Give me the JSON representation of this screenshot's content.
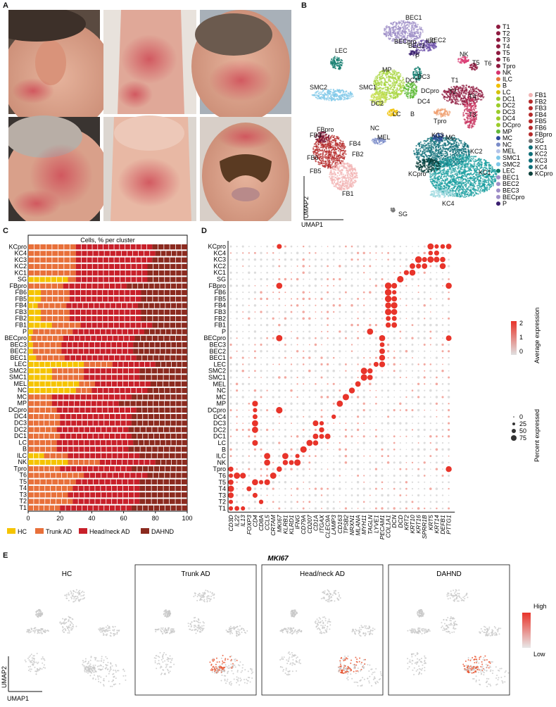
{
  "panels": {
    "a": "A",
    "b": "B",
    "c": "C",
    "d": "D",
    "e": "E"
  },
  "umap": {
    "xlabel": "UMAP1",
    "ylabel": "UMAP2",
    "cluster_labels": [
      "BEC1",
      "BEC2",
      "BEC3",
      "BECpro",
      "P",
      "LEC",
      "SMC1",
      "SMC2",
      "MP",
      "DC3",
      "DC1",
      "DCpro",
      "DC2",
      "DC4",
      "LC",
      "B",
      "ILC",
      "NK",
      "T5",
      "T6",
      "T1",
      "T2",
      "T4",
      "T3",
      "Tpro",
      "NC",
      "MEL",
      "FB3",
      "FBpro",
      "FB4",
      "FB6",
      "FB2",
      "FB5",
      "FB1",
      "KC3",
      "MC",
      "KC2",
      "KCpro",
      "KC1",
      "KC4",
      "SG"
    ],
    "legend_col1": [
      "T1",
      "T2",
      "T3",
      "T4",
      "T5",
      "T6",
      "Tpro",
      "NK",
      "ILC",
      "B",
      "LC",
      "DC1",
      "DC2",
      "DC3",
      "DC4",
      "DCpro",
      "MP",
      "MC",
      "NC",
      "MEL",
      "SMC1",
      "SMC2",
      "LEC",
      "BEC1",
      "BEC2",
      "BEC3",
      "BECpro",
      "P"
    ],
    "legend_col2": [
      "FB1",
      "FB2",
      "FB3",
      "FB4",
      "FB5",
      "FB6",
      "FBpro",
      "SG",
      "KC1",
      "KC2",
      "KC3",
      "KC4",
      "KCpro"
    ],
    "colors": {
      "T": "#8e1a3f",
      "NK": "#d8336e",
      "ILC": "#e87a3a",
      "B": "#f0c000",
      "LC": "#d4c20a",
      "DC": "#9bcc2a",
      "MP": "#63b839",
      "MC": "#2d4a9c",
      "NC": "#7a8cc9",
      "MEL": "#b3c3e8",
      "SMC": "#7ec7e8",
      "LEC": "#0e7a6c",
      "BEC": "#9e8ec7",
      "P": "#3a1f70",
      "FB": "#b52a2a",
      "FB1": "#f2b3b3",
      "SG": "#777777",
      "KC": "#0d6e78",
      "KCpro": "#0a3f3a"
    }
  },
  "stacked_bar": {
    "title": "Cells, % per cluster",
    "categories": [
      "KCpro",
      "KC4",
      "KC3",
      "KC2",
      "KC1",
      "SG",
      "FBpro",
      "FB6",
      "FB5",
      "FB4",
      "FB3",
      "FB2",
      "FB1",
      "P",
      "BECpro",
      "BEC3",
      "BEC2",
      "BEC1",
      "LEC",
      "SMC2",
      "SMC1",
      "MEL",
      "NC",
      "MC",
      "MP",
      "DCpro",
      "DC4",
      "DC3",
      "DC2",
      "DC1",
      "LC",
      "B",
      "ILC",
      "NK",
      "Tpro",
      "T6",
      "T5",
      "T4",
      "T3",
      "T2",
      "T1"
    ],
    "series_names": [
      "HC",
      "Trunk AD",
      "Head/neck AD",
      "DAHND"
    ],
    "series_colors": [
      "#f5c400",
      "#e8703a",
      "#c8202a",
      "#8b2a1f"
    ],
    "hc": [
      0,
      0,
      0,
      0,
      0,
      25,
      0,
      8,
      8,
      6,
      8,
      8,
      15,
      3,
      2,
      3,
      3,
      5,
      35,
      15,
      15,
      32,
      30,
      0,
      0,
      0,
      0,
      0,
      0,
      0,
      0,
      0,
      10,
      25,
      0,
      0,
      0,
      0,
      0,
      0,
      0
    ],
    "trunk": [
      30,
      30,
      30,
      30,
      30,
      5,
      22,
      18,
      18,
      18,
      18,
      18,
      18,
      25,
      20,
      18,
      18,
      18,
      18,
      20,
      20,
      10,
      10,
      15,
      15,
      18,
      20,
      20,
      18,
      20,
      18,
      18,
      15,
      20,
      20,
      35,
      30,
      28,
      25,
      28,
      20
    ],
    "head": [
      48,
      50,
      48,
      45,
      45,
      45,
      40,
      45,
      45,
      45,
      45,
      45,
      45,
      45,
      45,
      45,
      45,
      45,
      27,
      35,
      35,
      35,
      35,
      50,
      42,
      50,
      45,
      45,
      45,
      45,
      48,
      45,
      45,
      35,
      45,
      40,
      40,
      42,
      45,
      42,
      45
    ],
    "xticks": [
      "0",
      "20",
      "40",
      "60",
      "80",
      "100"
    ]
  },
  "dotplot": {
    "genes": [
      "CD3D",
      "IL22",
      "IL13",
      "FOXP3",
      "CD4",
      "CD8A",
      "CCL5",
      "CRTAM",
      "MKI67",
      "KLRB1",
      "KLRD1",
      "IFNG",
      "CD79A",
      "CD207",
      "CD1A",
      "ITGAX",
      "CLEC9A",
      "LAMP3",
      "CD163",
      "TPSB2",
      "NRXN1",
      "MLANA",
      "MYH11",
      "TAGLN",
      "LYVE1",
      "PECAM1",
      "COL1A1",
      "DCN",
      "DCD",
      "KRT2",
      "KRT10",
      "KRT16",
      "SPRR1B",
      "KRT5",
      "KRT14",
      "DEFB1",
      "PTTG1"
    ],
    "clusters": [
      "KCpro",
      "KC4",
      "KC3",
      "KC2",
      "KC1",
      "SG",
      "FBpro",
      "FB6",
      "FB5",
      "FB4",
      "FB3",
      "FB2",
      "FB1",
      "P",
      "BECpro",
      "BEC3",
      "BEC2",
      "BEC1",
      "LEC",
      "SMC2",
      "SMC1",
      "MEL",
      "NC",
      "MC",
      "MP",
      "DCpro",
      "DC4",
      "DC3",
      "DC2",
      "DC1",
      "LC",
      "B",
      "ILC",
      "NK",
      "Tpro",
      "T6",
      "T5",
      "T4",
      "T3",
      "T2",
      "T1"
    ],
    "legend_expr_title": "Average expression",
    "legend_expr_ticks": [
      "2",
      "1",
      "0"
    ],
    "legend_pct_title": "Percent expressed",
    "legend_pct_ticks": [
      "0",
      "25",
      "50",
      "75"
    ]
  },
  "mki67": {
    "title": "MKI67",
    "conditions": [
      "HC",
      "Trunk AD",
      "Head/neck AD",
      "DAHND"
    ],
    "legend_high": "High",
    "legend_low": "Low",
    "xlabel": "UMAP1",
    "ylabel": "UMAP2"
  }
}
